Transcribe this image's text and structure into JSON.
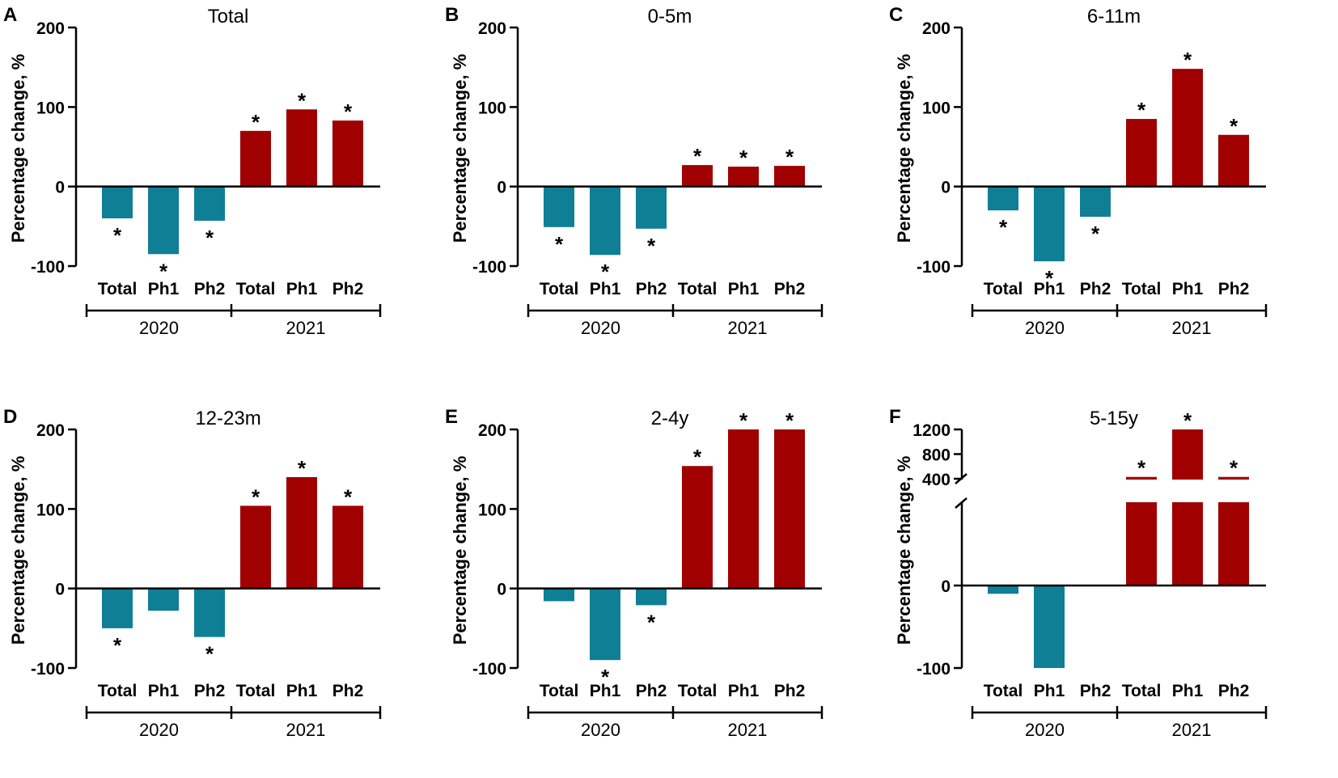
{
  "figure": {
    "colors": {
      "y2020": "#0F7F96",
      "y2021": "#A00000",
      "axis": "#000000"
    },
    "star_symbol": "*",
    "y_axis_label": "Percentage change, %"
  },
  "chart_data": [
    {
      "type": "bar",
      "panel_letter": "A",
      "title": "Total",
      "ylabel": "Percentage change, %",
      "ylim": [
        -100,
        200
      ],
      "yticks": [
        -100,
        0,
        100,
        200
      ],
      "ytick_labels": [
        "-100",
        "0",
        "100",
        "200"
      ],
      "categories": [
        "Total",
        "Ph1",
        "Ph2",
        "Total",
        "Ph1",
        "Ph2"
      ],
      "groups": [
        {
          "label": "2020",
          "count": 3
        },
        {
          "label": "2021",
          "count": 3
        }
      ],
      "values": [
        -40,
        -85,
        -43,
        70,
        97,
        83
      ],
      "significant": [
        true,
        true,
        true,
        true,
        true,
        true
      ]
    },
    {
      "type": "bar",
      "panel_letter": "B",
      "title": "0-5m",
      "ylabel": "Percentage change, %",
      "ylim": [
        -100,
        200
      ],
      "yticks": [
        -100,
        0,
        100,
        200
      ],
      "ytick_labels": [
        "-100",
        "0",
        "100",
        "200"
      ],
      "categories": [
        "Total",
        "Ph1",
        "Ph2",
        "Total",
        "Ph1",
        "Ph2"
      ],
      "groups": [
        {
          "label": "2020",
          "count": 3
        },
        {
          "label": "2021",
          "count": 3
        }
      ],
      "values": [
        -51,
        -86,
        -53,
        27,
        25,
        26
      ],
      "significant": [
        true,
        true,
        true,
        true,
        true,
        true
      ]
    },
    {
      "type": "bar",
      "panel_letter": "C",
      "title": "6-11m",
      "ylabel": "Percentage change, %",
      "ylim": [
        -100,
        200
      ],
      "yticks": [
        -100,
        0,
        100,
        200
      ],
      "ytick_labels": [
        "-100",
        "0",
        "100",
        "200"
      ],
      "categories": [
        "Total",
        "Ph1",
        "Ph2",
        "Total",
        "Ph1",
        "Ph2"
      ],
      "groups": [
        {
          "label": "2020",
          "count": 3
        },
        {
          "label": "2021",
          "count": 3
        }
      ],
      "values": [
        -30,
        -94,
        -38,
        85,
        148,
        65
      ],
      "significant": [
        true,
        true,
        true,
        true,
        true,
        true
      ]
    },
    {
      "type": "bar",
      "panel_letter": "D",
      "title": "12-23m",
      "ylabel": "Percentage change, %",
      "ylim": [
        -100,
        200
      ],
      "yticks": [
        -100,
        0,
        100,
        200
      ],
      "ytick_labels": [
        "-100",
        "0",
        "100",
        "200"
      ],
      "categories": [
        "Total",
        "Ph1",
        "Ph2",
        "Total",
        "Ph1",
        "Ph2"
      ],
      "groups": [
        {
          "label": "2020",
          "count": 3
        },
        {
          "label": "2021",
          "count": 3
        }
      ],
      "values": [
        -50,
        -28,
        -61,
        104,
        140,
        104
      ],
      "significant": [
        true,
        false,
        true,
        true,
        true,
        true
      ]
    },
    {
      "type": "bar",
      "panel_letter": "E",
      "title": "2-4y",
      "ylabel": "Percentage change, %",
      "ylim": [
        -100,
        200
      ],
      "yticks": [
        -100,
        0,
        100,
        200
      ],
      "ytick_labels": [
        "-100",
        "0",
        "100",
        "200"
      ],
      "categories": [
        "Total",
        "Ph1",
        "Ph2",
        "Total",
        "Ph1",
        "Ph2"
      ],
      "groups": [
        {
          "label": "2020",
          "count": 3
        },
        {
          "label": "2021",
          "count": 3
        }
      ],
      "values": [
        -16,
        -90,
        -21,
        154,
        200,
        200
      ],
      "significant": [
        false,
        true,
        true,
        true,
        true,
        true
      ]
    },
    {
      "type": "bar",
      "panel_letter": "F",
      "title": "5-15y",
      "ylabel": "Percentage change, %",
      "ylim": [
        -100,
        1200
      ],
      "axis_break": [
        100,
        400
      ],
      "yticks": [
        -100,
        0,
        400,
        800,
        1200
      ],
      "ytick_labels": [
        "-100",
        "0",
        "400",
        "800",
        "1200"
      ],
      "categories": [
        "Total",
        "Ph1",
        "Ph2",
        "Total",
        "Ph1",
        "Ph2"
      ],
      "groups": [
        {
          "label": "2020",
          "count": 3
        },
        {
          "label": "2021",
          "count": 3
        }
      ],
      "values": [
        -10,
        -100,
        0,
        430,
        1200,
        430
      ],
      "significant": [
        false,
        false,
        false,
        true,
        true,
        true
      ]
    }
  ]
}
